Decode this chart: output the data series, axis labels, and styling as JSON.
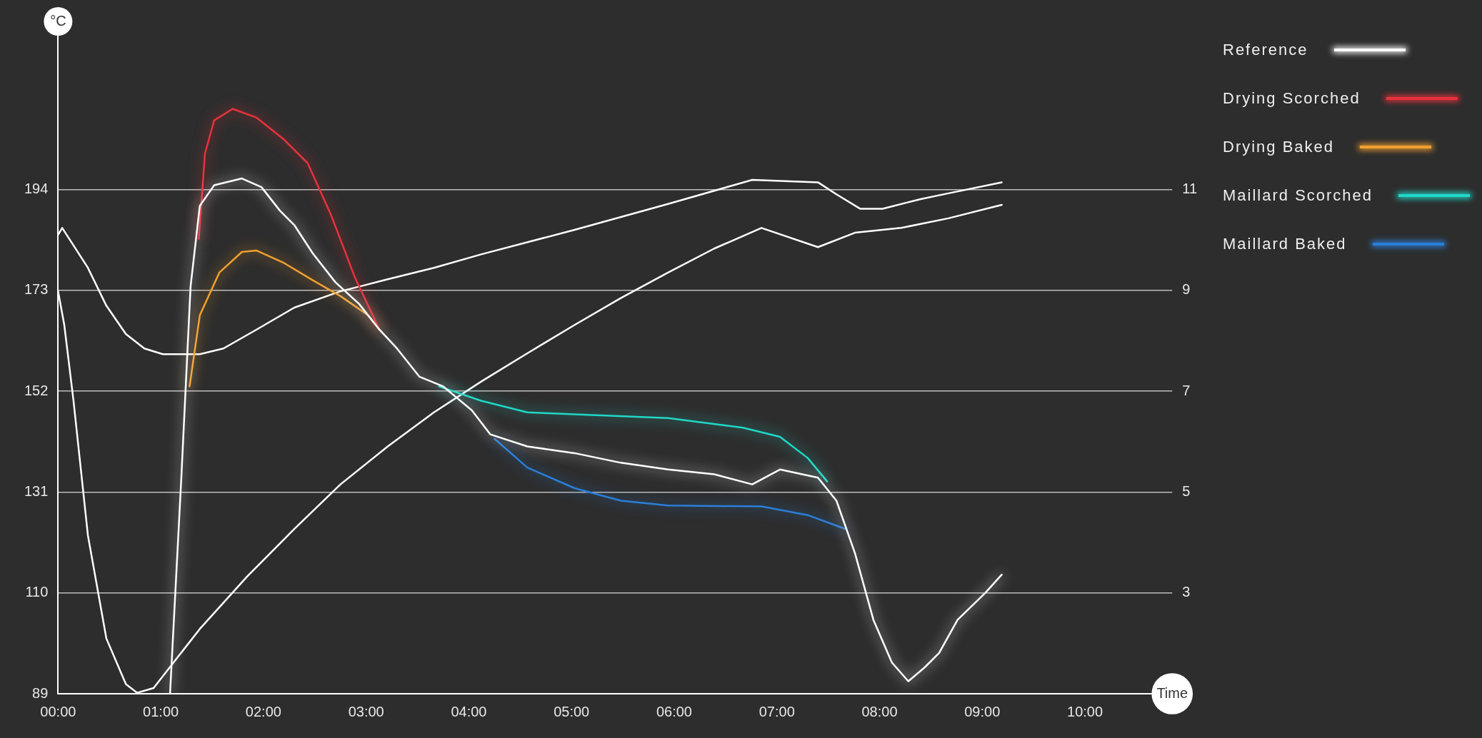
{
  "chart_data": {
    "type": "line",
    "xlabel": "Time",
    "ylabel": "°C",
    "xlim": [
      0,
      10.85
    ],
    "xticks": [
      {
        "value": 0,
        "label": "00:00"
      },
      {
        "value": 1,
        "label": "01:00"
      },
      {
        "value": 2,
        "label": "02:00"
      },
      {
        "value": 3,
        "label": "03:00"
      },
      {
        "value": 4,
        "label": "04:00"
      },
      {
        "value": 5,
        "label": "05:00"
      },
      {
        "value": 6,
        "label": "06:00"
      },
      {
        "value": 7,
        "label": "07:00"
      },
      {
        "value": 8,
        "label": "08:00"
      },
      {
        "value": 9,
        "label": "09:00"
      },
      {
        "value": 10,
        "label": "10:00"
      }
    ],
    "ylim": [
      89,
      229
    ],
    "yticks": [
      89,
      110,
      131,
      152,
      173,
      194
    ],
    "y2lim": [
      1,
      14.33
    ],
    "y2ticks": [
      3,
      5,
      7,
      9,
      11
    ],
    "grid": "y",
    "legend": "top right",
    "marker": "none",
    "line_style": "solid",
    "series": [
      {
        "name": "Reference",
        "color": "#ffffff",
        "x": [
          1.09,
          1.2,
          1.29,
          1.38,
          1.52,
          1.79,
          1.98,
          2.16,
          2.3,
          2.48,
          2.7,
          2.93,
          3.13,
          3.3,
          3.52,
          3.75,
          4.03,
          4.21,
          4.57,
          5.03,
          5.48,
          5.94,
          6.39,
          6.76,
          7.03,
          7.4,
          7.58,
          7.76,
          7.94,
          8.12,
          8.28,
          8.44,
          8.58,
          8.76,
          9.03,
          9.19
        ],
        "values": [
          89,
          134,
          173.8,
          190.6,
          194.9,
          196.3,
          194.5,
          189.6,
          186.6,
          180.7,
          174.7,
          170.2,
          164.8,
          160.9,
          155,
          153,
          148,
          143,
          140.5,
          139.1,
          137.1,
          135.7,
          134.7,
          132.6,
          135.7,
          134,
          129.2,
          118.3,
          104.4,
          95.5,
          91.6,
          94.5,
          97.5,
          104.4,
          110,
          113.8
        ]
      },
      {
        "name": "Drying Scorched",
        "color": "#e8323c",
        "x": [
          1.37,
          1.43,
          1.52,
          1.7,
          1.93,
          2.2,
          2.43,
          2.66,
          2.89,
          3.13
        ],
        "values": [
          183.7,
          201.5,
          208.4,
          210.8,
          209,
          204.4,
          199.5,
          188.6,
          175.7,
          164.8
        ]
      },
      {
        "name": "Drying Baked",
        "color": "#f0a030",
        "x": [
          1.28,
          1.38,
          1.57,
          1.79,
          1.93,
          2.2,
          2.48,
          2.75,
          3.02,
          3.13
        ],
        "values": [
          153,
          167.8,
          176.7,
          181,
          181.3,
          178.7,
          175.1,
          171.8,
          167.8,
          164.8
        ]
      },
      {
        "name": "Maillard Scorched",
        "color": "#20d8c8",
        "x": [
          3.71,
          4.12,
          4.57,
          5.03,
          5.94,
          6.67,
          7.03,
          7.3,
          7.49
        ],
        "values": [
          153,
          150,
          147.6,
          147.2,
          146.4,
          144.4,
          142.5,
          138.1,
          133.2
        ]
      },
      {
        "name": "Maillard Baked",
        "color": "#2a7fd8",
        "x": [
          4.25,
          4.57,
          5.03,
          5.48,
          5.94,
          6.85,
          7.3,
          7.67
        ],
        "values": [
          142.1,
          136.1,
          131.8,
          129.2,
          128.2,
          128,
          126.2,
          123.3
        ]
      },
      {
        "color": "#ffffff",
        "x": [
          0,
          0.04,
          0.29,
          0.47,
          0.66,
          0.84,
          1.02,
          1.38,
          1.61,
          1.93,
          2.3,
          2.75,
          3.21,
          3.66,
          4.12,
          5.03,
          5.94,
          6.76,
          7.4,
          7.58,
          7.81,
          8.03,
          8.4,
          8.67,
          9.19
        ],
        "values": [
          184.6,
          186,
          177.7,
          169.8,
          163.9,
          160.9,
          159.7,
          159.7,
          160.9,
          164.8,
          169.4,
          172.8,
          175.3,
          177.7,
          180.5,
          185.6,
          191,
          196,
          195.5,
          193,
          190,
          190,
          192,
          193.2,
          195.5
        ]
      },
      {
        "color": "#ffffff",
        "x": [
          0,
          0.06,
          0.15,
          0.29,
          0.47,
          0.66,
          0.77,
          0.93,
          1.38,
          1.84,
          2.3,
          2.75,
          3.21,
          3.66,
          4.12,
          4.57,
          5.03,
          5.48,
          5.94,
          6.39,
          6.85,
          7.4,
          7.76,
          8.21,
          8.67,
          9.19
        ],
        "values": [
          172.8,
          165.8,
          150,
          122,
          100.5,
          91,
          89.2,
          90.2,
          102.5,
          113.4,
          123.3,
          132.6,
          140.5,
          147.6,
          154,
          159.9,
          165.8,
          171.4,
          176.7,
          181.7,
          186,
          182,
          185,
          186,
          188,
          190.8
        ]
      }
    ]
  }
}
